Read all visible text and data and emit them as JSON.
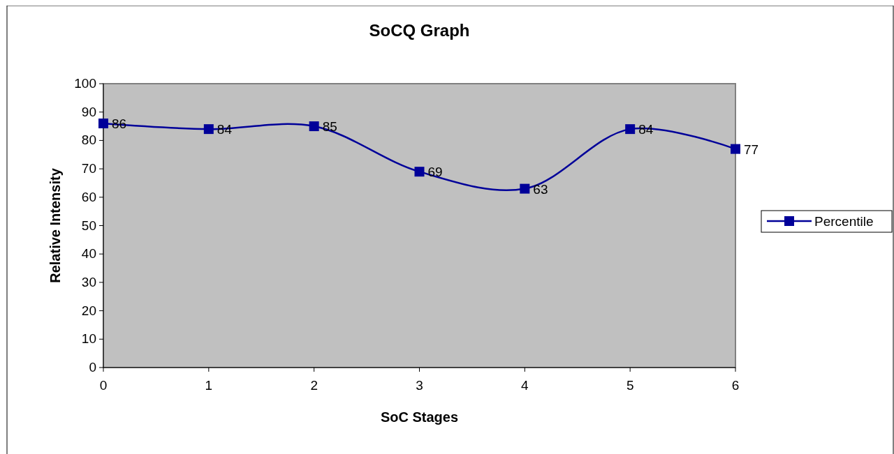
{
  "chart_data": {
    "type": "line",
    "title": "SoCQ Graph",
    "xlabel": "SoC Stages",
    "ylabel": "Relative Intensity",
    "x": [
      0,
      1,
      2,
      3,
      4,
      5,
      6
    ],
    "series": [
      {
        "name": "Percentile",
        "color": "#000099",
        "values": [
          86,
          84,
          85,
          69,
          63,
          84,
          77
        ]
      }
    ],
    "xlim": [
      0,
      6
    ],
    "xticks": [
      0,
      1,
      2,
      3,
      4,
      5,
      6
    ],
    "ylim": [
      0,
      100
    ],
    "yticks": [
      0,
      10,
      20,
      30,
      40,
      50,
      60,
      70,
      80,
      90,
      100
    ],
    "grid": false,
    "legend": "right",
    "marker": "square",
    "line_style": "solid",
    "data_labels": true
  }
}
